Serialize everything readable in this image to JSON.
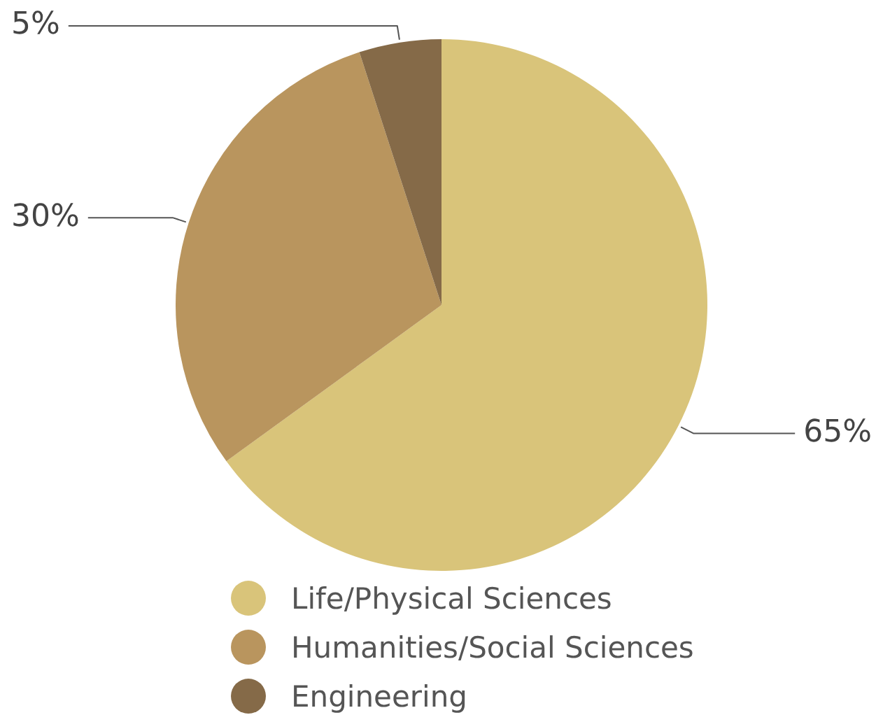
{
  "chart_data": {
    "type": "pie",
    "categories": [
      "Life/Physical Sciences",
      "Humanities/Social Sciences",
      "Engineering"
    ],
    "values": [
      65,
      30,
      5
    ],
    "value_labels": [
      "65%",
      "30%",
      "5%"
    ],
    "colors": [
      "#d9c47a",
      "#b9955e",
      "#856a48"
    ],
    "legend": "bottom"
  }
}
